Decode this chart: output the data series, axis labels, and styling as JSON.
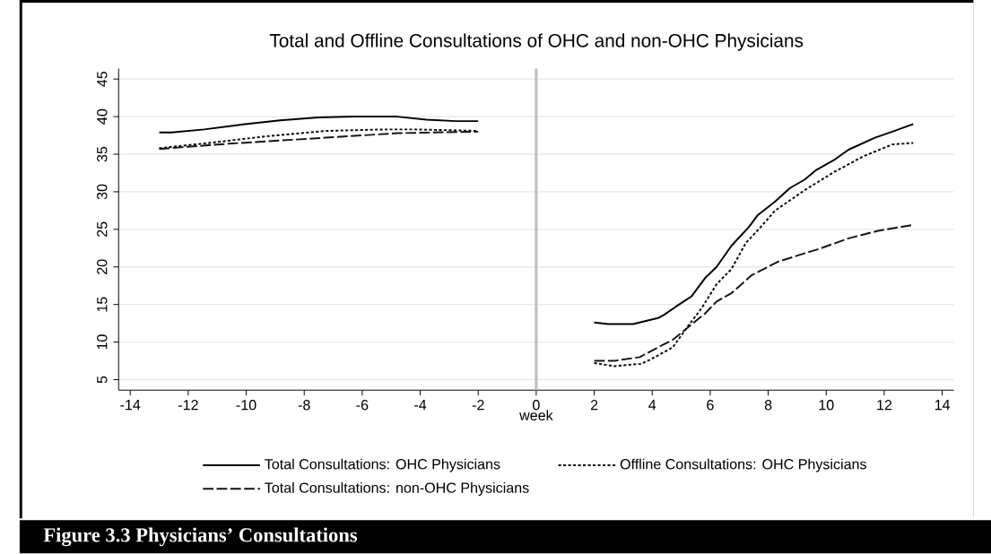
{
  "chart_data": {
    "type": "line",
    "title": "Total and Offline Consultations of OHC and non-OHC Physicians",
    "xlabel": "week",
    "xlim": [
      -14.4,
      14.4
    ],
    "ylim": [
      3.6,
      46.4
    ],
    "xticks": [
      -14,
      -12,
      -10,
      -8,
      -6,
      -4,
      -2,
      0,
      2,
      4,
      6,
      8,
      10,
      12,
      14
    ],
    "yticks": [
      5,
      10,
      15,
      20,
      25,
      30,
      35,
      40,
      45
    ],
    "grid": "y",
    "legend": "bottom",
    "ref_lines": [
      {
        "axis": "x",
        "value": 0,
        "color": "#c0c0c0"
      }
    ],
    "annotations": [
      "Figure 3.3 Physicians’ Consultations"
    ],
    "series": [
      {
        "name": "Total Consultations: OHC Physicians",
        "color": "#000000",
        "line_style": "solid",
        "x": [
          -13,
          -12.57,
          -11.45,
          -10.04,
          -8.83,
          -7.52,
          -6.3,
          -4.79,
          -3.78,
          -2.77,
          -2,
          0,
          2,
          2.48,
          3.34,
          4.2,
          4.4,
          4.81,
          5.36,
          5.82,
          6.22,
          6.73,
          7.33,
          7.64,
          8.24,
          8.75,
          9.25,
          9.66,
          10.26,
          10.77,
          11.68,
          12.28,
          13
        ],
        "values": [
          37.9,
          37.9,
          38.3,
          39.0,
          39.5,
          39.9,
          40.0,
          40.0,
          39.6,
          39.4,
          39.4,
          null,
          12.6,
          12.4,
          12.4,
          13.2,
          13.6,
          14.7,
          16.1,
          18.5,
          20.0,
          22.8,
          25.3,
          26.9,
          28.7,
          30.5,
          31.6,
          32.9,
          34.2,
          35.6,
          37.2,
          38.0,
          39.0
        ]
      },
      {
        "name": "Offline Consultations: OHC Physicians",
        "color": "#0a0a0a",
        "line_style": "dotted",
        "x": [
          -13,
          -11.28,
          -9.27,
          -7.25,
          -5.24,
          -4.24,
          -2,
          0,
          2,
          2.69,
          3.6,
          3.9,
          4.71,
          5.21,
          5.72,
          6.22,
          6.73,
          7.23,
          7.74,
          8.24,
          9.25,
          10.26,
          11.27,
          12.28,
          13
        ],
        "values": [
          35.8,
          36.5,
          37.4,
          38.1,
          38.3,
          38.3,
          38.1,
          null,
          7.2,
          6.8,
          7.1,
          7.6,
          9.3,
          12.0,
          14.6,
          17.7,
          19.7,
          23.2,
          25.3,
          27.5,
          30.2,
          32.6,
          34.7,
          36.3,
          36.5
        ]
      },
      {
        "name": "Total Consultations: non-OHC Physicians",
        "color": "#141414",
        "line_style": "dashed",
        "x": [
          -13,
          -10.6,
          -7.25,
          -4.79,
          -2,
          0,
          2,
          2.69,
          3.57,
          4.2,
          4.71,
          5.44,
          5.82,
          6.22,
          6.73,
          7.43,
          7.94,
          8.34,
          9.25,
          9.76,
          10.77,
          11.78,
          13
        ],
        "values": [
          35.7,
          36.4,
          37.2,
          37.8,
          38.0,
          null,
          7.5,
          7.5,
          8.0,
          9.3,
          10.3,
          12.6,
          13.8,
          15.4,
          16.5,
          18.9,
          19.9,
          20.7,
          21.8,
          22.4,
          23.8,
          24.8,
          25.6
        ]
      }
    ]
  }
}
